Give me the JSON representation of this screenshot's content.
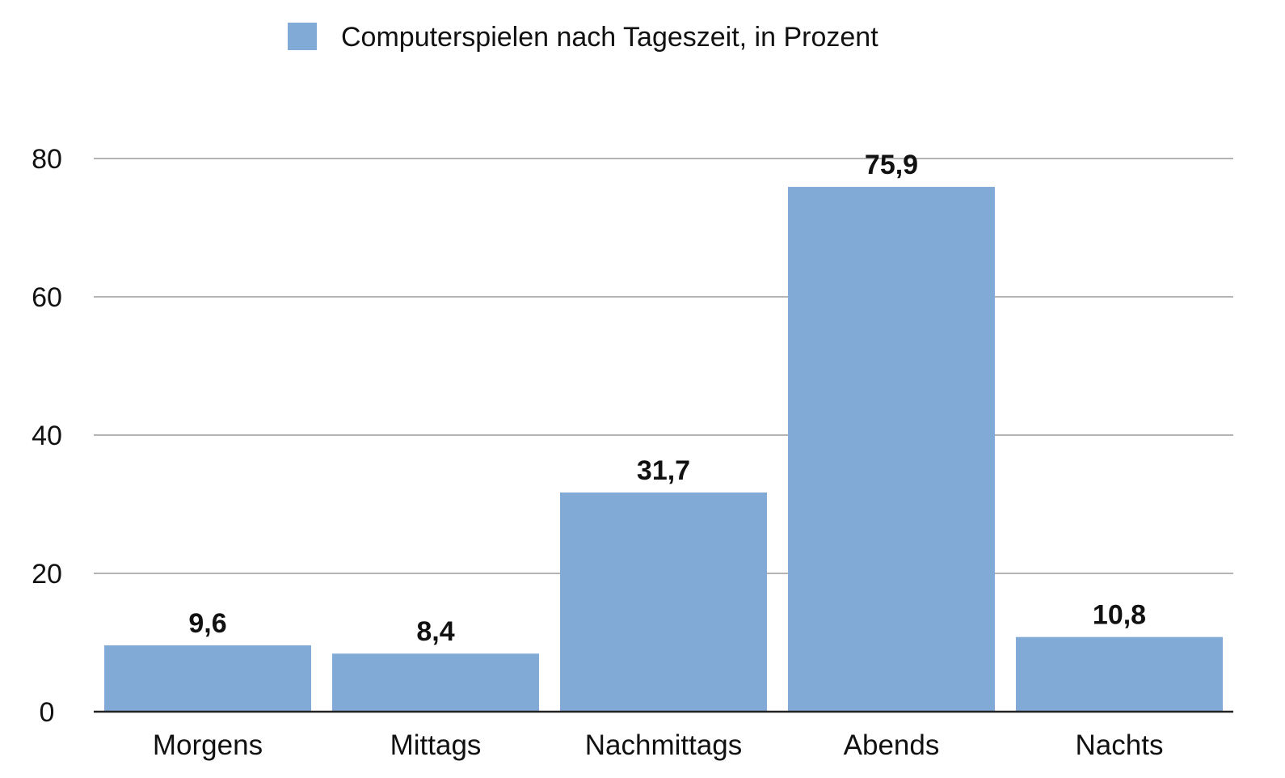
{
  "chart_data": {
    "type": "bar",
    "categories": [
      "Morgens",
      "Mittags",
      "Nachmittags",
      "Abends",
      "Nachts"
    ],
    "series": [
      {
        "name": "Computerspielen nach Tageszeit, in Prozent",
        "values": [
          9.6,
          8.4,
          31.7,
          75.9,
          10.8
        ],
        "value_labels": [
          "9,6",
          "8,4",
          "31,7",
          "75,9",
          "10,8"
        ],
        "color": "#82aad6"
      }
    ],
    "title": "",
    "xlabel": "",
    "ylabel": "",
    "ylim": [
      0,
      80
    ],
    "yticks": [
      0,
      20,
      40,
      60,
      80
    ],
    "ytick_labels": [
      "0",
      "20",
      "40",
      "60",
      "80"
    ],
    "grid": true,
    "gridline_color": "#b4b4b4",
    "axis_color": "#222222",
    "legend_position": "top-center"
  }
}
